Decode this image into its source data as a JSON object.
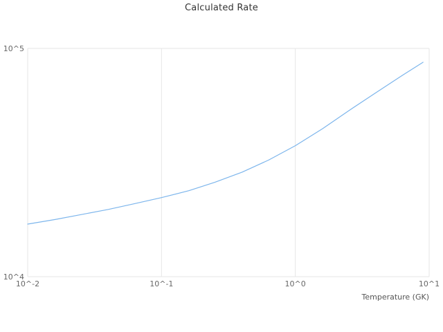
{
  "chart": {
    "title": "Calculated Rate",
    "xlabel": "Temperature (GK)"
  },
  "chart_data": {
    "type": "line",
    "title": "Calculated Rate",
    "xlabel": "Temperature (GK)",
    "ylabel": "",
    "x_scale": "log",
    "y_scale": "log",
    "xlim": [
      0.01,
      10
    ],
    "ylim": [
      10000,
      100000
    ],
    "x_ticks": [
      "10^-2",
      "10^-1",
      "10^0",
      "10^1"
    ],
    "x_tick_values": [
      0.01,
      0.1,
      1,
      10
    ],
    "y_ticks": [
      "10^4",
      "10^5"
    ],
    "y_tick_values": [
      10000,
      100000
    ],
    "grid": true,
    "legend": "none",
    "series_name": "Calculated Rate",
    "x": [
      0.01,
      0.016,
      0.025,
      0.04,
      0.063,
      0.1,
      0.16,
      0.25,
      0.4,
      0.63,
      1.0,
      1.6,
      2.5,
      4.0,
      6.3,
      9.0
    ],
    "y": [
      17000,
      17800,
      18700,
      19700,
      20900,
      22200,
      23800,
      25900,
      28700,
      32400,
      37500,
      44500,
      53300,
      64000,
      76200,
      87000
    ],
    "colors": {
      "line": "#7cb5ec",
      "grid": "#e6e6e6",
      "tick": "#666666",
      "title": "#333333"
    }
  }
}
